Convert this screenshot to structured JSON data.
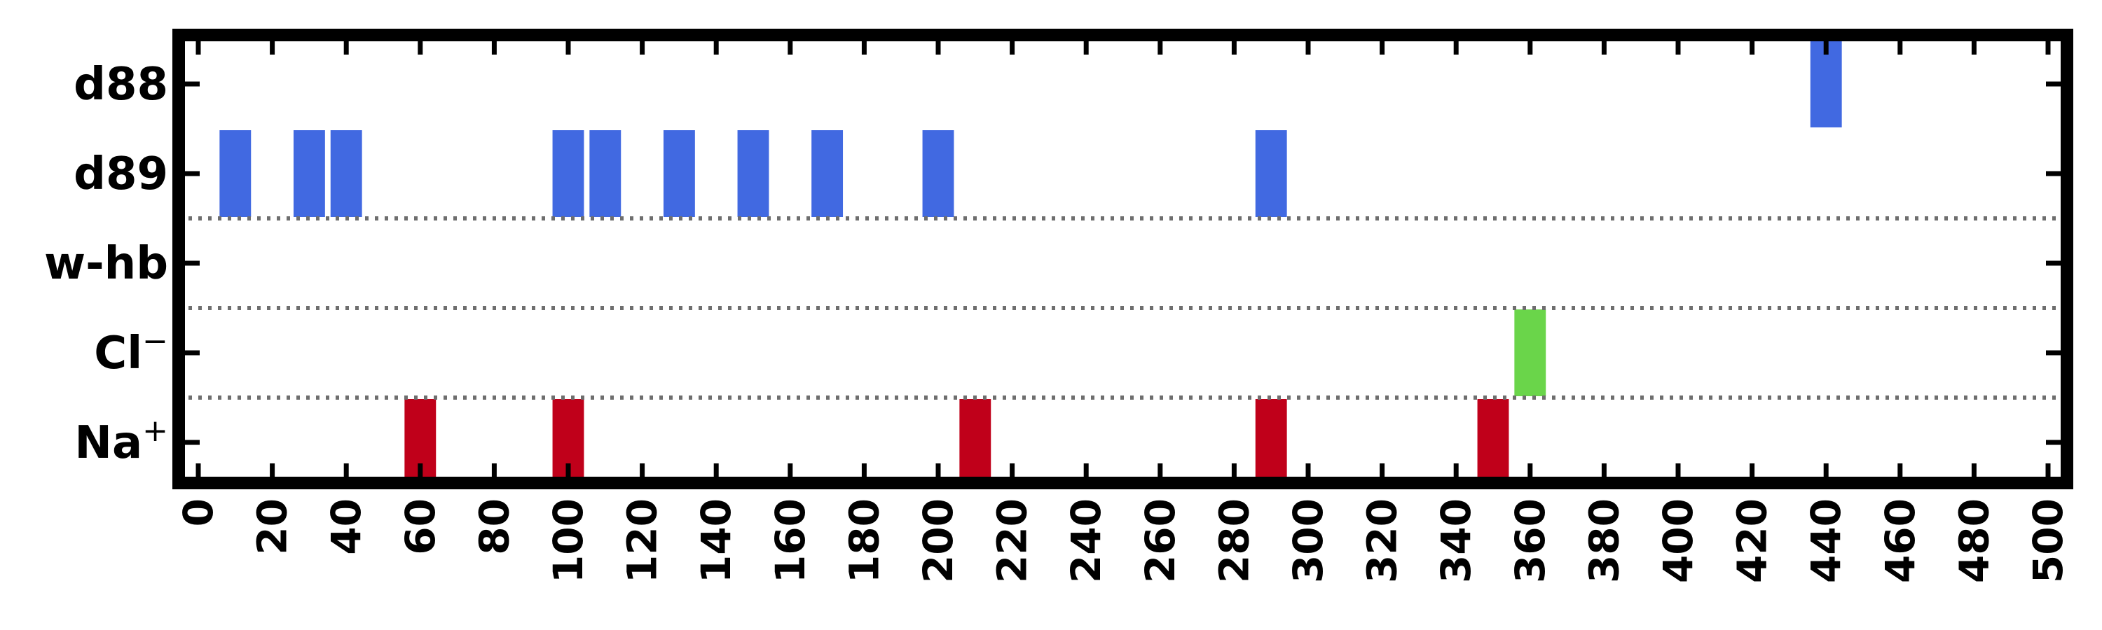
{
  "chart_data": {
    "type": "event-raster",
    "xlim": [
      0,
      500
    ],
    "x_ticks": [
      "0",
      "20",
      "40",
      "60",
      "80",
      "100",
      "120",
      "140",
      "160",
      "180",
      "200",
      "220",
      "240",
      "260",
      "280",
      "300",
      "320",
      "340",
      "360",
      "380",
      "400",
      "420",
      "440",
      "460",
      "480",
      "500"
    ],
    "rows": [
      {
        "label": "d88",
        "sup": "",
        "color": "#4169e1"
      },
      {
        "label": "d89",
        "sup": "",
        "color": "#4169e1"
      },
      {
        "label": "w-hb",
        "sup": "",
        "color": "#4169e1"
      },
      {
        "label": "Cl",
        "sup": "−",
        "color": "#6ad54a"
      },
      {
        "label": "Na",
        "sup": "+",
        "color": "#c0001a"
      }
    ],
    "separators_below_rows": [
      "d89",
      "w-hb",
      "Cl"
    ],
    "bar_width": 8.5,
    "events": [
      {
        "row": "d88",
        "x": 440
      },
      {
        "row": "d89",
        "x": 10
      },
      {
        "row": "d89",
        "x": 30
      },
      {
        "row": "d89",
        "x": 40
      },
      {
        "row": "d89",
        "x": 100
      },
      {
        "row": "d89",
        "x": 110
      },
      {
        "row": "d89",
        "x": 130
      },
      {
        "row": "d89",
        "x": 150
      },
      {
        "row": "d89",
        "x": 170
      },
      {
        "row": "d89",
        "x": 200
      },
      {
        "row": "d89",
        "x": 290
      },
      {
        "row": "Cl",
        "x": 360
      },
      {
        "row": "Na",
        "x": 60
      },
      {
        "row": "Na",
        "x": 100
      },
      {
        "row": "Na",
        "x": 210
      },
      {
        "row": "Na",
        "x": 290
      },
      {
        "row": "Na",
        "x": 350
      }
    ]
  }
}
